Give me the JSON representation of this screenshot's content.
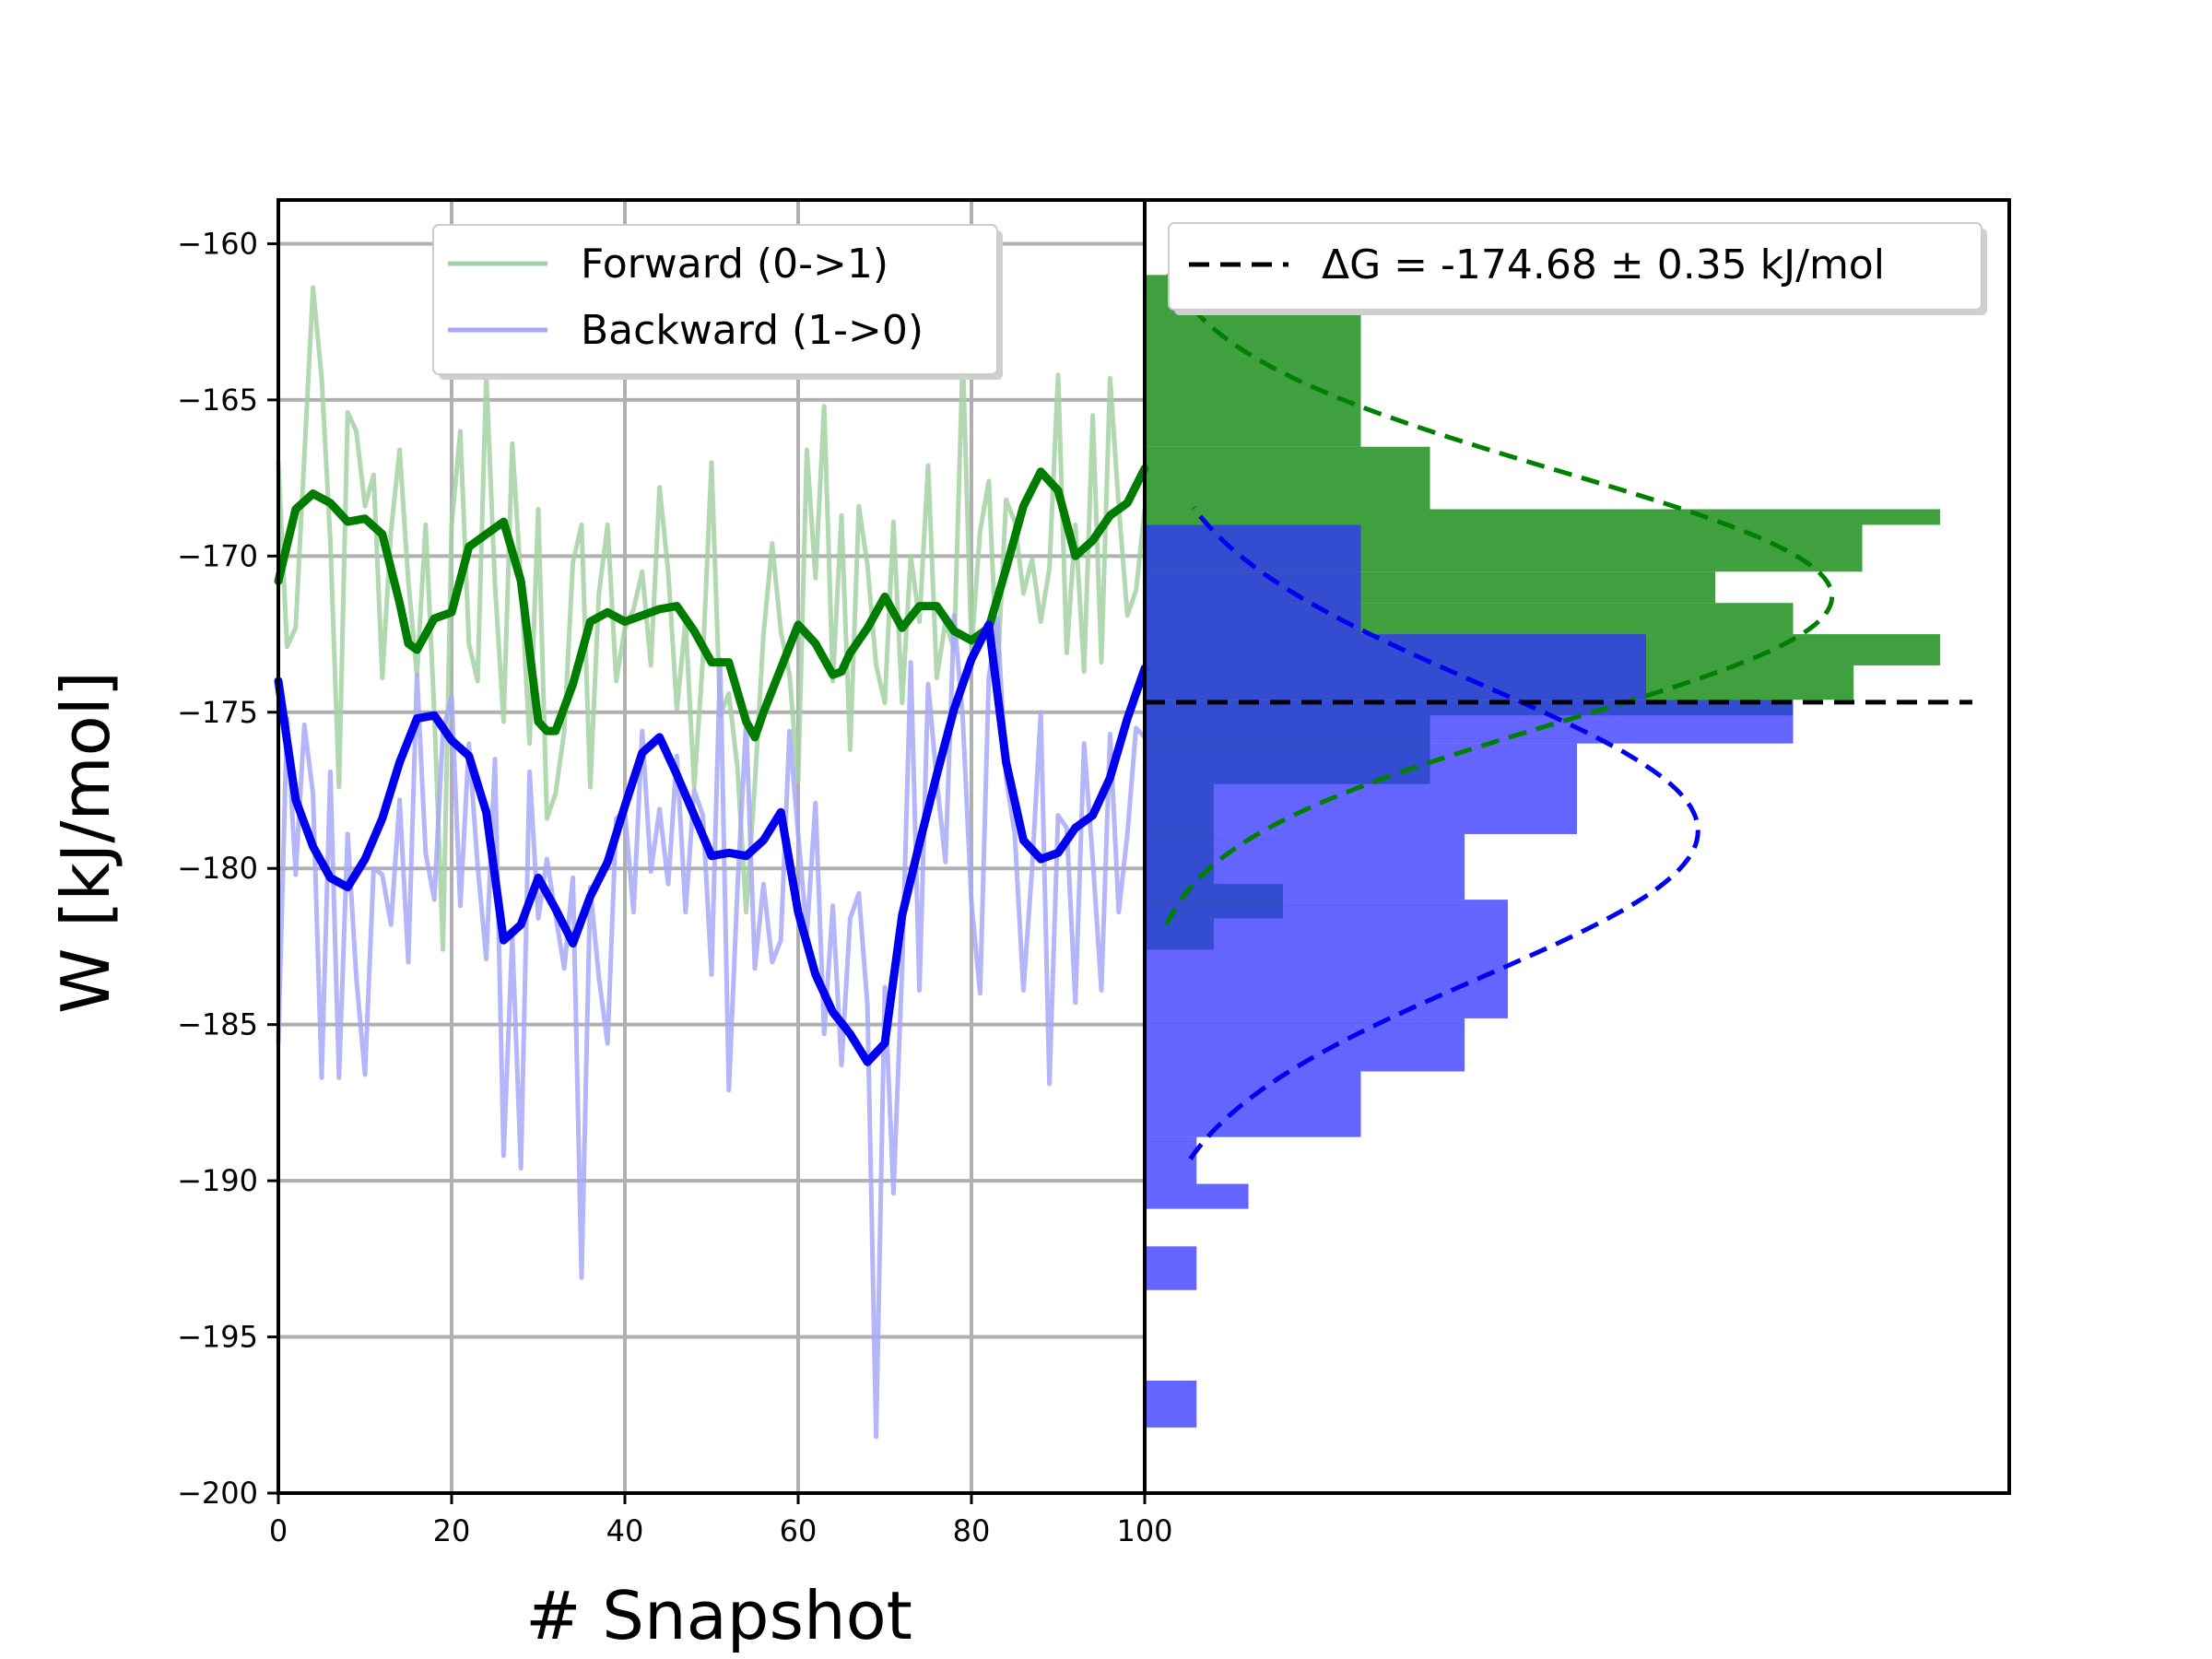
{
  "chart_data": [
    {
      "type": "line",
      "panel": "left",
      "xlabel": "# Snapshot",
      "ylabel": "W [kJ/mol]",
      "xlim": [
        0,
        100
      ],
      "ylim": [
        -200,
        -158.6
      ],
      "grid": true,
      "x_ticks": [
        0,
        20,
        40,
        60,
        80,
        100
      ],
      "x_tick_labels": [
        "0",
        "20",
        "40",
        "60",
        "80",
        "100"
      ],
      "y_ticks": [
        -160,
        -165,
        -170,
        -175,
        -180,
        -185,
        -190,
        -195,
        -200
      ],
      "y_tick_labels": [
        "−160",
        "−165",
        "−170",
        "−175",
        "−180",
        "−185",
        "−190",
        "−195",
        "−200"
      ],
      "legend_position": "top-center",
      "series": [
        {
          "name": "Forward (0->1)",
          "color": "#a3d1a3",
          "style": "raw",
          "x": [
            0,
            1,
            2,
            3,
            4,
            5,
            6,
            7,
            8,
            9,
            10,
            11,
            12,
            13,
            14,
            15,
            16,
            17,
            18,
            19,
            20,
            21,
            22,
            23,
            24,
            25,
            26,
            27,
            28,
            29,
            30,
            31,
            32,
            33,
            34,
            35,
            36,
            37,
            38,
            39,
            40,
            41,
            42,
            43,
            44,
            45,
            46,
            47,
            48,
            49,
            50,
            51,
            52,
            53,
            54,
            55,
            56,
            57,
            58,
            59,
            60,
            61,
            62,
            63,
            64,
            65,
            66,
            67,
            68,
            69,
            70,
            71,
            72,
            73,
            74,
            75,
            76,
            77,
            78,
            79,
            80,
            81,
            82,
            83,
            84,
            85,
            86,
            87,
            88,
            89,
            90,
            91,
            92,
            93,
            94,
            95,
            96,
            97,
            98,
            99,
            100
          ],
          "values": [
            -167,
            -172.9,
            -172.3,
            -166.8,
            -161.4,
            -164.3,
            -169.5,
            -177.4,
            -165.4,
            -166,
            -168.4,
            -167.4,
            -173.9,
            -169.2,
            -166.6,
            -170.8,
            -173.8,
            -169,
            -175,
            -182.6,
            -169,
            -166,
            -172.8,
            -174,
            -164.2,
            -170.9,
            -175.3,
            -166.4,
            -170.8,
            -176,
            -168.5,
            -178.4,
            -177.6,
            -175.6,
            -170.2,
            -169,
            -177.4,
            -171.2,
            -169,
            -174,
            -172.3,
            -171.7,
            -170.5,
            -173.5,
            -167.8,
            -170.5,
            -174.9,
            -172.1,
            -177.4,
            -173.3,
            -167,
            -175.1,
            -174.4,
            -176.8,
            -181.4,
            -177.3,
            -172.5,
            -169.6,
            -172.4,
            -173.8,
            -177.2,
            -166.6,
            -170.7,
            -165.2,
            -174,
            -168.7,
            -176.2,
            -168.4,
            -170.3,
            -173.5,
            -174.7,
            -168.9,
            -174.7,
            -170,
            -172.1,
            -167.1,
            -173.9,
            -172.1,
            -173,
            -163.6,
            -173,
            -169.2,
            -167.6,
            -173.8,
            -168.2,
            -168.9,
            -171.2,
            -170.1,
            -172.1,
            -170.4,
            -164.2,
            -173.1,
            -169,
            -173.7,
            -165.5,
            -173.4,
            -164.3,
            -168.4,
            -171.9,
            -171.1,
            -168.5
          ]
        },
        {
          "name": "Backward (1->0)",
          "color": "#a8a8f8",
          "style": "raw",
          "x": [
            0,
            1,
            2,
            3,
            4,
            5,
            6,
            7,
            8,
            9,
            10,
            11,
            12,
            13,
            14,
            15,
            16,
            17,
            18,
            19,
            20,
            21,
            22,
            23,
            24,
            25,
            26,
            27,
            28,
            29,
            30,
            31,
            32,
            33,
            34,
            35,
            36,
            37,
            38,
            39,
            40,
            41,
            42,
            43,
            44,
            45,
            46,
            47,
            48,
            49,
            50,
            51,
            52,
            53,
            54,
            55,
            56,
            57,
            58,
            59,
            60,
            61,
            62,
            63,
            64,
            65,
            66,
            67,
            68,
            69,
            70,
            71,
            72,
            73,
            74,
            75,
            76,
            77,
            78,
            79,
            80,
            81,
            82,
            83,
            84,
            85,
            86,
            87,
            88,
            89,
            90,
            91,
            92,
            93,
            94,
            95,
            96,
            97,
            98,
            99,
            100
          ],
          "values": [
            -185.6,
            -175.2,
            -180.2,
            -175.4,
            -177.6,
            -186.7,
            -176.9,
            -186.7,
            -178.9,
            -183.5,
            -186.6,
            -180,
            -180.2,
            -181.8,
            -177.8,
            -183,
            -173.8,
            -179.5,
            -181,
            -175.6,
            -174.5,
            -181.2,
            -176,
            -179.9,
            -182.9,
            -176.5,
            -189.2,
            -182.2,
            -189.6,
            -176.9,
            -181.6,
            -179.7,
            -181.5,
            -183.2,
            -180.3,
            -193.1,
            -180.6,
            -183.5,
            -185.6,
            -178.4,
            -178.2,
            -181.4,
            -175.6,
            -180.1,
            -178.1,
            -180.5,
            -176.4,
            -181.4,
            -177.5,
            -178.3,
            -183.4,
            -173.3,
            -187.1,
            -180.6,
            -175.3,
            -183.2,
            -180.5,
            -183,
            -182.3,
            -175.6,
            -178.9,
            -182.1,
            -177.9,
            -185.3,
            -181.2,
            -186.3,
            -181.6,
            -180.8,
            -184.4,
            -198.2,
            -183.8,
            -190.4,
            -183.2,
            -173.4,
            -183.9,
            -174.1,
            -177.2,
            -179.8,
            -171.9,
            -175.2,
            -181.1,
            -184,
            -173.9,
            -172,
            -177.1,
            -178.9,
            -183.9,
            -180,
            -175,
            -186.9,
            -178.3,
            -178.7,
            -184.3,
            -176,
            -179.7,
            -183.9,
            -175.7,
            -181.4,
            -178.9,
            -175.5,
            -175.8
          ]
        },
        {
          "color": "#007d00",
          "style": "smoothed",
          "x": [
            0,
            2,
            4,
            6,
            8,
            10,
            12,
            14,
            15,
            16,
            18,
            20,
            22,
            24,
            26,
            28,
            30,
            31,
            32,
            34,
            36,
            38,
            40,
            42,
            44,
            46,
            48,
            50,
            52,
            54,
            55,
            56,
            58,
            60,
            62,
            64,
            65,
            66,
            68,
            70,
            72,
            74,
            76,
            78,
            80,
            82,
            84,
            86,
            88,
            90,
            92,
            94,
            96,
            98,
            100
          ],
          "values": [
            -170.8,
            -168.5,
            -168,
            -168.3,
            -168.9,
            -168.8,
            -169.3,
            -171.5,
            -172.8,
            -173,
            -172,
            -171.8,
            -169.7,
            -169.3,
            -168.9,
            -170.8,
            -175.3,
            -175.6,
            -175.6,
            -174.1,
            -172.1,
            -171.8,
            -172.1,
            -171.9,
            -171.7,
            -171.6,
            -172.4,
            -173.4,
            -173.4,
            -175.3,
            -175.8,
            -175,
            -173.6,
            -172.2,
            -172.8,
            -173.8,
            -173.7,
            -173.1,
            -172.3,
            -171.3,
            -172.3,
            -171.6,
            -171.6,
            -172.4,
            -172.7,
            -172.3,
            -170.4,
            -168.4,
            -167.3,
            -167.9,
            -170,
            -169.5,
            -168.7,
            -168.3,
            -167.2
          ]
        },
        {
          "color": "#0000ee",
          "style": "smoothed",
          "x": [
            0,
            2,
            4,
            6,
            8,
            10,
            12,
            14,
            16,
            18,
            20,
            22,
            24,
            26,
            28,
            30,
            32,
            34,
            36,
            38,
            40,
            42,
            44,
            46,
            48,
            50,
            52,
            54,
            56,
            58,
            60,
            62,
            64,
            66,
            68,
            70,
            72,
            74,
            76,
            78,
            80,
            82,
            84,
            86,
            88,
            90,
            92,
            94,
            96,
            98,
            100
          ],
          "values": [
            -174,
            -177.8,
            -179.3,
            -180.3,
            -180.6,
            -179.7,
            -178.4,
            -176.6,
            -175.2,
            -175.1,
            -175.9,
            -176.4,
            -178.2,
            -182.3,
            -181.8,
            -180.3,
            -181.3,
            -182.4,
            -180.9,
            -179.8,
            -178,
            -176.3,
            -175.8,
            -177,
            -178.3,
            -179.6,
            -179.5,
            -179.6,
            -179.1,
            -178.2,
            -181.4,
            -183.4,
            -184.6,
            -185.3,
            -186.2,
            -185.6,
            -181.5,
            -179.2,
            -177,
            -174.9,
            -173.3,
            -172.2,
            -176.6,
            -179.1,
            -179.7,
            -179.5,
            -178.7,
            -178.3,
            -177.1,
            -175.2,
            -173.6
          ]
        }
      ]
    },
    {
      "type": "histogram",
      "panel": "right",
      "orientation": "horizontal",
      "ylim": [
        -200,
        -158.6
      ],
      "grid": false,
      "legend_position": "top-right",
      "annotation_line": {
        "label": "ΔG = -174.68 ± 0.35 kJ/mol",
        "value": -174.68,
        "color": "#000000",
        "style": "dashed"
      },
      "series": [
        {
          "name": "Forward histogram",
          "color": "#008000",
          "bins": [
            [
              -163.6,
              -161,
              0.25
            ],
            [
              -166.5,
              -163.6,
              0.25
            ],
            [
              -168.5,
              -166.5,
              0.33
            ],
            [
              -169.0,
              -168.5,
              0.92
            ],
            [
              -170.5,
              -169.0,
              0.83
            ],
            [
              -171.5,
              -170.5,
              0.66
            ],
            [
              -172.5,
              -171.5,
              0.75
            ],
            [
              -173.5,
              -172.5,
              0.92
            ],
            [
              -174.6,
              -173.5,
              0.82
            ],
            [
              -175.1,
              -174.6,
              0.75
            ],
            [
              -177.3,
              -175.1,
              0.33
            ],
            [
              -179.5,
              -177.3,
              0.08
            ],
            [
              -180.5,
              -179.5,
              0.08
            ],
            [
              -181.6,
              -180.5,
              0.16
            ],
            [
              -182.6,
              -181.6,
              0.08
            ]
          ]
        },
        {
          "name": "Backward histogram",
          "color": "#3030ff",
          "bins": [
            [
              -170.5,
              -169.0,
              0.25
            ],
            [
              -172.5,
              -170.5,
              0.25
            ],
            [
              -174.6,
              -172.5,
              0.58
            ],
            [
              -176.0,
              -174.6,
              0.75
            ],
            [
              -178.9,
              -176.0,
              0.5
            ],
            [
              -181.0,
              -178.9,
              0.37
            ],
            [
              -184.8,
              -181.0,
              0.42
            ],
            [
              -186.5,
              -184.8,
              0.37
            ],
            [
              -188.6,
              -186.5,
              0.25
            ],
            [
              -190.1,
              -188.6,
              0.06
            ],
            [
              -190.9,
              -190.1,
              0.12
            ],
            [
              -193.5,
              -192.1,
              0.06
            ],
            [
              -197.9,
              -196.4,
              0.06
            ]
          ]
        },
        {
          "name": "Forward gaussian",
          "color": "#008000",
          "style": "dashed",
          "mean": -171.3,
          "sd": 4.0,
          "peak_fraction": 0.795
        },
        {
          "name": "Backward gaussian",
          "color": "#0000ee",
          "style": "dashed",
          "mean": -178.8,
          "sd": 4.7,
          "peak_fraction": 0.64
        }
      ]
    }
  ]
}
